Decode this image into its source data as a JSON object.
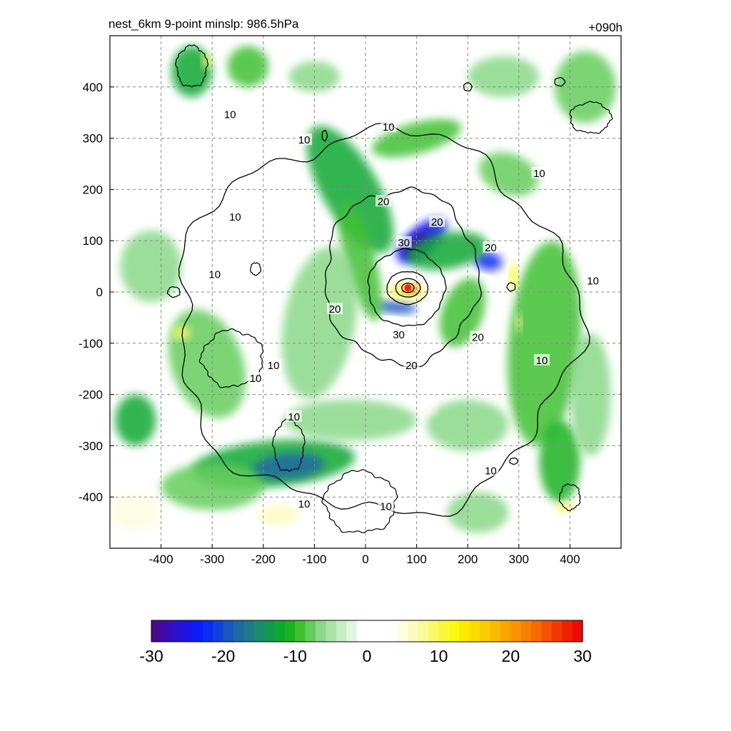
{
  "chart_data": {
    "type": "heatmap",
    "title_left": "nest_6km  9-point minslp: 986.5hPa",
    "title_right": "+090h",
    "xlabel": "",
    "ylabel": "",
    "xlim": [
      -500,
      500
    ],
    "ylim": [
      -500,
      500
    ],
    "x_ticks": [
      -400,
      -300,
      -200,
      -100,
      0,
      100,
      200,
      300,
      400
    ],
    "y_ticks": [
      400,
      300,
      200,
      100,
      0,
      -100,
      -200,
      -300,
      -400
    ],
    "grid": true,
    "colorbar": {
      "min": -30,
      "max": 30,
      "ticks": [
        -30,
        -20,
        -10,
        0,
        10,
        20,
        30
      ],
      "colors": [
        "#4b0a8c",
        "#3a0cb0",
        "#2a10cf",
        "#1b14e6",
        "#0a1cf8",
        "#0a2cf5",
        "#1240dc",
        "#1a55c0",
        "#1f68a6",
        "#1f7a8a",
        "#1b8a6e",
        "#13994f",
        "#0da834",
        "#1bb31f",
        "#3fc033",
        "#64cc5c",
        "#8ad888",
        "#a9e3a7",
        "#c6edc4",
        "#dff5dd",
        "#ffffff",
        "#ffffff",
        "#ffffff",
        "#ffffff",
        "#fdfde0",
        "#fbfbbf",
        "#fafa98",
        "#f9f96b",
        "#f8f83a",
        "#fafa10",
        "#fcec00",
        "#fcdc00",
        "#fccb00",
        "#fbb900",
        "#faa600",
        "#f99400",
        "#f88000",
        "#f66a00",
        "#f45200",
        "#f23a00",
        "#f02000",
        "#ee0a00"
      ]
    },
    "contour_levels": [
      10,
      20,
      30
    ],
    "contour_labels": [
      {
        "text": "10",
        "x": -265,
        "y": 345
      },
      {
        "text": "10",
        "x": 340,
        "y": 230
      },
      {
        "text": "10",
        "x": 45,
        "y": 320
      },
      {
        "text": "10",
        "x": -120,
        "y": 295
      },
      {
        "text": "10",
        "x": -255,
        "y": 145
      },
      {
        "text": "10",
        "x": -295,
        "y": 33
      },
      {
        "text": "10",
        "x": 445,
        "y": 20
      },
      {
        "text": "10",
        "x": -180,
        "y": -145
      },
      {
        "text": "10",
        "x": -215,
        "y": -170
      },
      {
        "text": "10",
        "x": 345,
        "y": -135
      },
      {
        "text": "10",
        "x": -140,
        "y": -245
      },
      {
        "text": "10",
        "x": 245,
        "y": -350
      },
      {
        "text": "10",
        "x": 40,
        "y": -420
      },
      {
        "text": "10",
        "x": -120,
        "y": -415
      },
      {
        "text": "20",
        "x": 35,
        "y": 175
      },
      {
        "text": "20",
        "x": 140,
        "y": 135
      },
      {
        "text": "20",
        "x": 245,
        "y": 85
      },
      {
        "text": "20",
        "x": -60,
        "y": -35
      },
      {
        "text": "20",
        "x": 220,
        "y": -90
      },
      {
        "text": "20",
        "x": 90,
        "y": -145
      },
      {
        "text": "30",
        "x": 75,
        "y": 95
      },
      {
        "text": "30",
        "x": 65,
        "y": -85
      }
    ],
    "storm_center": {
      "x": 83,
      "y": 8
    },
    "anomaly_blobs": [
      {
        "x": 110,
        "y": 100,
        "rx": 60,
        "ry": 28,
        "rot": -40,
        "v": -24
      },
      {
        "x": 100,
        "y": 95,
        "rx": 35,
        "ry": 18,
        "rot": -40,
        "v": -28
      },
      {
        "x": 240,
        "y": 60,
        "rx": 28,
        "ry": 18,
        "rot": 10,
        "v": -22
      },
      {
        "x": 60,
        "y": -30,
        "rx": 40,
        "ry": 12,
        "rot": 5,
        "v": -20
      },
      {
        "x": -30,
        "y": 200,
        "rx": 55,
        "ry": 140,
        "rot": -30,
        "v": -12
      },
      {
        "x": -10,
        "y": 60,
        "rx": 30,
        "ry": 120,
        "rot": -15,
        "v": -10
      },
      {
        "x": 100,
        "y": 300,
        "rx": 90,
        "ry": 30,
        "rot": -15,
        "v": -9
      },
      {
        "x": 160,
        "y": 80,
        "rx": 80,
        "ry": 35,
        "rot": -10,
        "v": -12
      },
      {
        "x": 190,
        "y": -40,
        "rx": 40,
        "ry": 70,
        "rot": 20,
        "v": -10
      },
      {
        "x": 280,
        "y": 230,
        "rx": 60,
        "ry": 40,
        "rot": 20,
        "v": -8
      },
      {
        "x": 350,
        "y": -100,
        "rx": 70,
        "ry": 200,
        "rot": 5,
        "v": -10
      },
      {
        "x": 380,
        "y": -330,
        "rx": 40,
        "ry": 80,
        "rot": 0,
        "v": -11
      },
      {
        "x": -180,
        "y": -335,
        "rx": 160,
        "ry": 45,
        "rot": -5,
        "v": -12
      },
      {
        "x": -150,
        "y": -340,
        "rx": 70,
        "ry": 25,
        "rot": -5,
        "v": -18
      },
      {
        "x": -300,
        "y": -380,
        "rx": 100,
        "ry": 45,
        "rot": 0,
        "v": -8
      },
      {
        "x": -340,
        "y": 430,
        "rx": 40,
        "ry": 50,
        "rot": 0,
        "v": -12
      },
      {
        "x": -230,
        "y": 440,
        "rx": 40,
        "ry": 40,
        "rot": 0,
        "v": -10
      },
      {
        "x": -310,
        "y": -140,
        "rx": 70,
        "ry": 110,
        "rot": -20,
        "v": -8
      },
      {
        "x": -450,
        "y": -250,
        "rx": 40,
        "ry": 50,
        "rot": 0,
        "v": -12
      },
      {
        "x": -420,
        "y": 50,
        "rx": 60,
        "ry": 70,
        "rot": 0,
        "v": -6
      },
      {
        "x": -90,
        "y": -60,
        "rx": 70,
        "ry": 150,
        "rot": 10,
        "v": -6
      },
      {
        "x": -30,
        "y": -250,
        "rx": 130,
        "ry": 40,
        "rot": 0,
        "v": -7
      },
      {
        "x": 200,
        "y": -260,
        "rx": 80,
        "ry": 50,
        "rot": 0,
        "v": -6
      },
      {
        "x": 430,
        "y": 400,
        "rx": 60,
        "ry": 70,
        "rot": 0,
        "v": -8
      },
      {
        "x": 270,
        "y": 420,
        "rx": 70,
        "ry": 40,
        "rot": 0,
        "v": -7
      },
      {
        "x": 440,
        "y": -200,
        "rx": 40,
        "ry": 120,
        "rot": 0,
        "v": -7
      },
      {
        "x": 220,
        "y": -430,
        "rx": 60,
        "ry": 40,
        "rot": 0,
        "v": -6
      },
      {
        "x": -100,
        "y": 420,
        "rx": 50,
        "ry": 30,
        "rot": 0,
        "v": -6
      },
      {
        "x": 80,
        "y": 0,
        "rx": 38,
        "ry": 18,
        "rot": 0,
        "v": 10
      },
      {
        "x": 90,
        "y": 5,
        "rx": 14,
        "ry": 10,
        "rot": 0,
        "v": 22
      },
      {
        "x": 290,
        "y": 30,
        "rx": 8,
        "ry": 25,
        "rot": 0,
        "v": 12
      },
      {
        "x": 300,
        "y": -60,
        "rx": 6,
        "ry": 20,
        "rot": 0,
        "v": 8
      },
      {
        "x": -360,
        "y": -80,
        "rx": 18,
        "ry": 14,
        "rot": 0,
        "v": 10
      },
      {
        "x": -310,
        "y": 450,
        "rx": 10,
        "ry": 14,
        "rot": 0,
        "v": 9
      },
      {
        "x": -450,
        "y": -430,
        "rx": 50,
        "ry": 35,
        "rot": 0,
        "v": 5
      },
      {
        "x": -170,
        "y": -435,
        "rx": 40,
        "ry": 20,
        "rot": 0,
        "v": 6
      },
      {
        "x": 390,
        "y": -420,
        "rx": 20,
        "ry": 10,
        "rot": 0,
        "v": 10
      },
      {
        "x": 125,
        "y": -230,
        "rx": 12,
        "ry": 8,
        "rot": 0,
        "v": 5
      }
    ]
  }
}
